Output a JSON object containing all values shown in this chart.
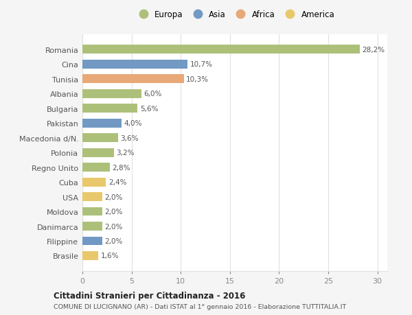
{
  "countries": [
    "Brasile",
    "Filippine",
    "Danimarca",
    "Moldova",
    "USA",
    "Cuba",
    "Regno Unito",
    "Polonia",
    "Macedonia d/N.",
    "Pakistan",
    "Bulgaria",
    "Albania",
    "Tunisia",
    "Cina",
    "Romania"
  ],
  "values": [
    1.6,
    2.0,
    2.0,
    2.0,
    2.0,
    2.4,
    2.8,
    3.2,
    3.6,
    4.0,
    5.6,
    6.0,
    10.3,
    10.7,
    28.2
  ],
  "labels": [
    "1,6%",
    "2,0%",
    "2,0%",
    "2,0%",
    "2,0%",
    "2,4%",
    "2,8%",
    "3,2%",
    "3,6%",
    "4,0%",
    "5,6%",
    "6,0%",
    "10,3%",
    "10,7%",
    "28,2%"
  ],
  "continents": [
    "America",
    "Asia",
    "Europa",
    "Europa",
    "America",
    "America",
    "Europa",
    "Europa",
    "Europa",
    "Asia",
    "Europa",
    "Europa",
    "Africa",
    "Asia",
    "Europa"
  ],
  "colors": {
    "Europa": "#adc07a",
    "Asia": "#7199c4",
    "Africa": "#e8a878",
    "America": "#e8c86a"
  },
  "legend_items": [
    "Europa",
    "Asia",
    "Africa",
    "America"
  ],
  "legend_colors": [
    "#adc07a",
    "#7199c4",
    "#e8a878",
    "#e8c86a"
  ],
  "title1": "Cittadini Stranieri per Cittadinanza - 2016",
  "title2": "COMUNE DI LUCIGNANO (AR) - Dati ISTAT al 1° gennaio 2016 - Elaborazione TUTTITALIA.IT",
  "xlim": [
    0,
    31
  ],
  "xticks": [
    0,
    5,
    10,
    15,
    20,
    25,
    30
  ],
  "background_color": "#f5f5f5",
  "bar_background": "#ffffff",
  "grid_color": "#e0e0e0"
}
